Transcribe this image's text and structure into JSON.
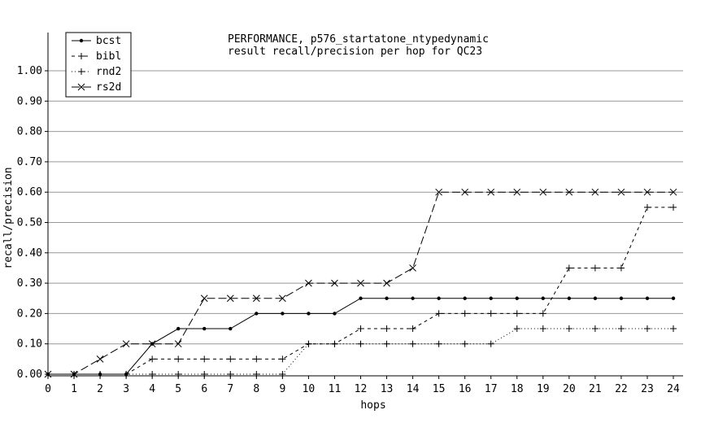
{
  "chart_data": {
    "type": "line",
    "title": "PERFORMANCE, p576_startatone_ntypedynamic",
    "subtitle": "result recall/precision per hop for QC23",
    "xlabel": "hops",
    "ylabel": "recall/precision",
    "x": [
      0,
      1,
      2,
      3,
      4,
      5,
      6,
      7,
      8,
      9,
      10,
      11,
      12,
      13,
      14,
      15,
      16,
      17,
      18,
      19,
      20,
      21,
      22,
      23,
      24
    ],
    "xlim": [
      0,
      24
    ],
    "ylim": [
      0,
      1.05
    ],
    "yticks": [
      "0.00",
      "0.10",
      "0.20",
      "0.30",
      "0.40",
      "0.50",
      "0.60",
      "0.70",
      "0.80",
      "0.90",
      "1.00"
    ],
    "xticks": [
      "0",
      "1",
      "2",
      "3",
      "4",
      "5",
      "6",
      "7",
      "8",
      "9",
      "10",
      "11",
      "12",
      "13",
      "14",
      "15",
      "16",
      "17",
      "18",
      "19",
      "20",
      "21",
      "22",
      "23",
      "24"
    ],
    "grid": true,
    "legend_position": "top-left",
    "series": [
      {
        "name": "bcst",
        "marker": "dot",
        "dash": "solid",
        "values": [
          0,
          0,
          0,
          0,
          0.1,
          0.15,
          0.15,
          0.15,
          0.2,
          0.2,
          0.2,
          0.2,
          0.25,
          0.25,
          0.25,
          0.25,
          0.25,
          0.25,
          0.25,
          0.25,
          0.25,
          0.25,
          0.25,
          0.25,
          0.25
        ]
      },
      {
        "name": "bibl",
        "marker": "plus",
        "dash": "dashed",
        "values": [
          0,
          0,
          0,
          0,
          0.05,
          0.05,
          0.05,
          0.05,
          0.05,
          0.05,
          0.1,
          0.1,
          0.15,
          0.15,
          0.15,
          0.2,
          0.2,
          0.2,
          0.2,
          0.2,
          0.35,
          0.35,
          0.35,
          0.55,
          0.55
        ]
      },
      {
        "name": "rnd2",
        "marker": "plus",
        "dash": "dotted",
        "values": [
          0,
          0,
          0,
          0,
          0,
          0,
          0,
          0,
          0,
          0,
          0.1,
          0.1,
          0.1,
          0.1,
          0.1,
          0.1,
          0.1,
          0.1,
          0.15,
          0.15,
          0.15,
          0.15,
          0.15,
          0.15,
          0.15
        ]
      },
      {
        "name": "rs2d",
        "marker": "cross",
        "dash": "longdash",
        "values": [
          0,
          0,
          0.05,
          0.1,
          0.1,
          0.1,
          0.25,
          0.25,
          0.25,
          0.25,
          0.3,
          0.3,
          0.3,
          0.3,
          0.35,
          0.6,
          0.6,
          0.6,
          0.6,
          0.6,
          0.6,
          0.6,
          0.6,
          0.6,
          0.6
        ]
      }
    ]
  }
}
